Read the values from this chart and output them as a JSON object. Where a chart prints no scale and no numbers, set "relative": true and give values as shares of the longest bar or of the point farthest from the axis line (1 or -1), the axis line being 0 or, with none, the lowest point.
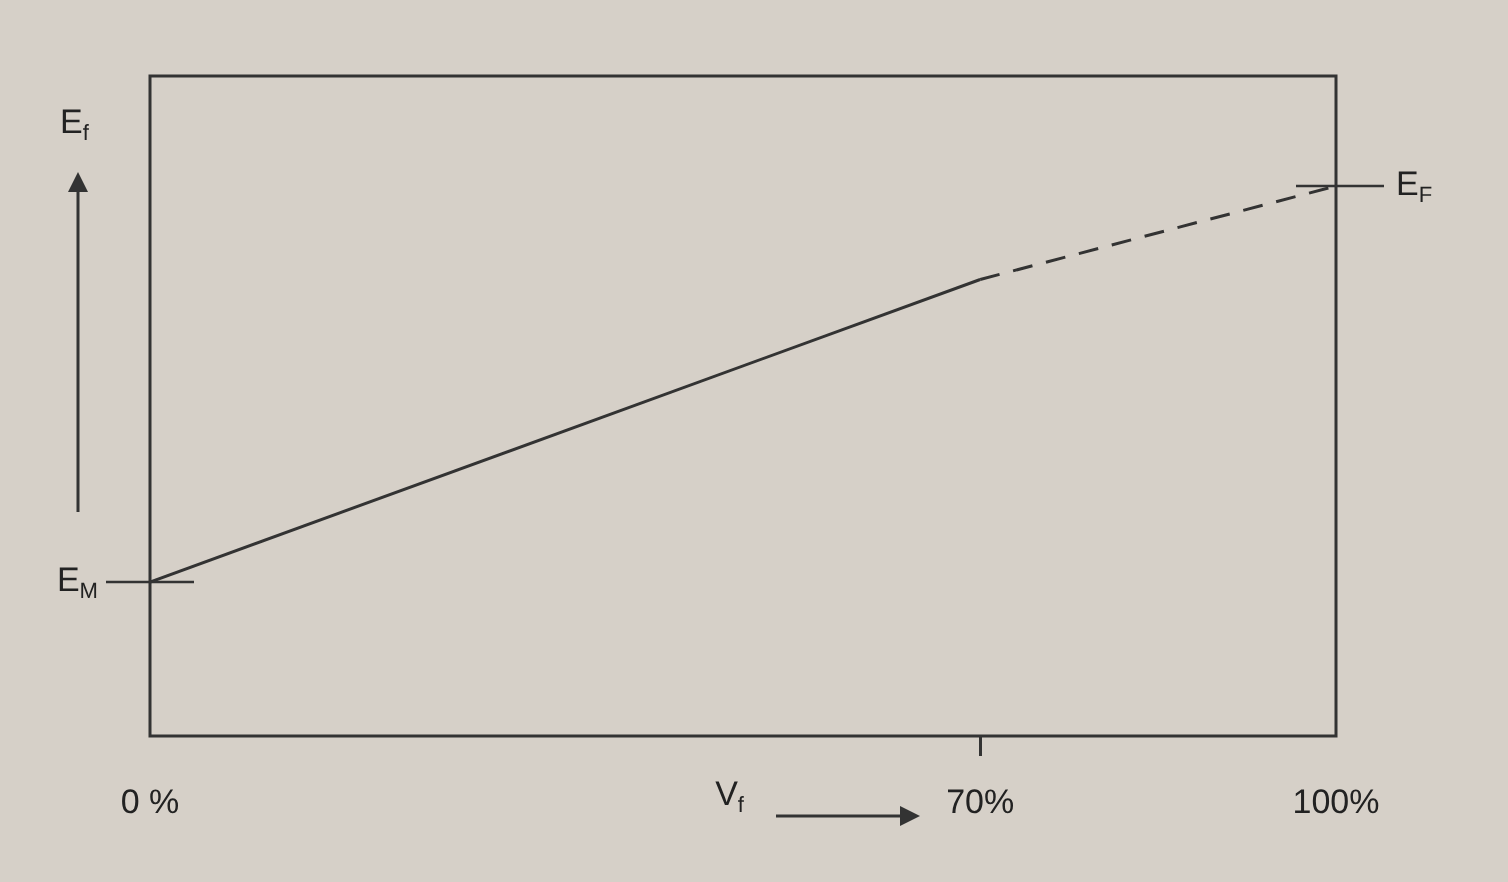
{
  "chart_data": {
    "type": "line",
    "relative": true,
    "xlabel": "V$_{f}$",
    "ylabel": "E$_{f}$",
    "xlim": [
      0,
      100
    ],
    "xticks": [
      {
        "value": 0,
        "label": "0 %"
      },
      {
        "value": 70,
        "label": "70%"
      },
      {
        "value": 100,
        "label": "100%"
      }
    ],
    "grid": false,
    "legend": false,
    "marker": "none",
    "series": [
      {
        "color": "#333333",
        "line_style": "solid",
        "x": [
          0,
          70
        ],
        "values": [
          0.28,
          0.83
        ]
      },
      {
        "color": "#333333",
        "line_style": "dashed",
        "x": [
          70,
          100
        ],
        "values": [
          0.83,
          1
        ]
      }
    ],
    "annotations": [
      {
        "text": "E$_{M}$",
        "x": 0,
        "y": 0.28
      },
      {
        "text": "E$_{F}$",
        "x": 100,
        "y": 1
      }
    ]
  }
}
